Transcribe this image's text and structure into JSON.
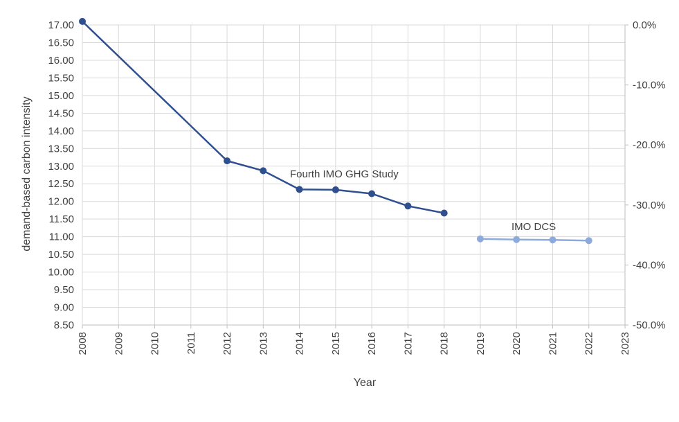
{
  "chart_data": {
    "type": "line",
    "xlabel": "Year",
    "ylabel": "demand-based carbon intensity",
    "x_ticks": [
      "2008",
      "2009",
      "2010",
      "2011",
      "2012",
      "2013",
      "2014",
      "2015",
      "2016",
      "2017",
      "2018",
      "2019",
      "2020",
      "2021",
      "2022",
      "2023"
    ],
    "ylim": [
      8.5,
      17.0
    ],
    "y_ticks": [
      "8.50",
      "9.00",
      "9.50",
      "10.00",
      "10.50",
      "11.00",
      "11.50",
      "12.00",
      "12.50",
      "13.00",
      "13.50",
      "14.00",
      "14.50",
      "15.00",
      "15.50",
      "16.00",
      "16.50",
      "17.00"
    ],
    "y2lim": [
      -0.5,
      0.0
    ],
    "y2_ticks": [
      "0.0%",
      "-10.0%",
      "-20.0%",
      "-30.0%",
      "-40.0%",
      "-50.0%"
    ],
    "grid": true,
    "series": [
      {
        "name": "Fourth IMO GHG Study",
        "color": "#2f4f8f",
        "x": [
          "2008",
          "2012",
          "2013",
          "2014",
          "2015",
          "2016",
          "2017",
          "2018"
        ],
        "values": [
          17.1,
          13.15,
          12.87,
          12.34,
          12.33,
          12.22,
          11.87,
          11.67
        ]
      },
      {
        "name": "IMO DCS",
        "color": "#8eaadb",
        "x": [
          "2019",
          "2020",
          "2021",
          "2022"
        ],
        "values": [
          10.94,
          10.92,
          10.91,
          10.89
        ]
      }
    ]
  }
}
